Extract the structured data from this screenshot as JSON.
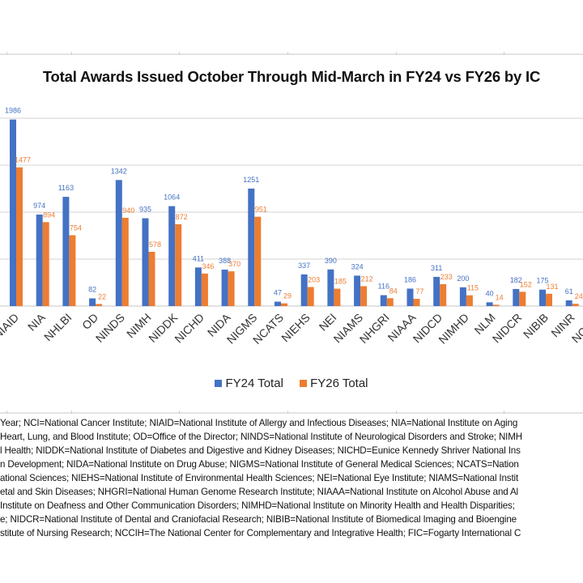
{
  "chart_data": {
    "type": "bar",
    "title": "Total Awards Issued October Through Mid-March in FY24 vs FY26 by IC",
    "xlabel": "",
    "ylabel": "",
    "ylim": [
      0,
      2000
    ],
    "gridlines": [
      0,
      500,
      1000,
      1500,
      2000
    ],
    "grid": true,
    "legend_position": "bottom",
    "categories": [
      "NIAID",
      "NIA",
      "NHLBI",
      "OD",
      "NINDS",
      "NIMH",
      "NIDDK",
      "NICHD",
      "NIDA",
      "NIGMS",
      "NCATS",
      "NIEHS",
      "NEI",
      "NIAMS",
      "NHGRI",
      "NIAAA",
      "NIDCD",
      "NIMHD",
      "NLM",
      "NIDCR",
      "NIBIB",
      "NINR",
      "NCCIH"
    ],
    "series": [
      {
        "name": "FY24 Total",
        "color": "#4472c4",
        "values": [
          1986,
          974,
          1163,
          82,
          1342,
          935,
          1064,
          411,
          388,
          1251,
          47,
          337,
          390,
          324,
          116,
          186,
          311,
          200,
          40,
          182,
          175,
          61,
          null
        ]
      },
      {
        "name": "FY26 Total",
        "color": "#ed7d31",
        "values": [
          1477,
          894,
          754,
          22,
          940,
          578,
          872,
          346,
          370,
          951,
          29,
          203,
          185,
          212,
          84,
          77,
          233,
          115,
          14,
          152,
          131,
          24,
          null
        ]
      }
    ]
  },
  "notes": [
    "Year; NCI=National Cancer Institute; NIAID=National Institute of Allergy and Infectious Diseases; NIA=National Institute on Aging",
    "Heart, Lung, and Blood Institute; OD=Office of the Director; NINDS=National Institute of Neurological Disorders and Stroke; NIMH",
    "l Health; NIDDK=National Institute of Diabetes and Digestive and Kidney Diseases; NICHD=Eunice Kennedy Shriver National Ins",
    "n Development; NIDA=National Institute on Drug Abuse; NIGMS=National Institute of General Medical Sciences; NCATS=Nation",
    "ational Sciences; NIEHS=National Institute of Environmental Health Sciences; NEI=National Eye Institute; NIAMS=National Instit",
    "etal and Skin Diseases; NHGRI=National Human Genome Research Institute; NIAAA=National Institute on Alcohol Abuse and Al",
    "Institute on Deafness and Other Communication Disorders; NIMHD=National Institute on Minority Health and Health Disparities;",
    "e; NIDCR=National Institute of Dental and Craniofacial Research; NIBIB=National Institute of Biomedical Imaging and Bioengine",
    "stitute of Nursing Research; NCCIH=The National Center for Complementary and Integrative Health; FIC=Fogarty International C"
  ]
}
